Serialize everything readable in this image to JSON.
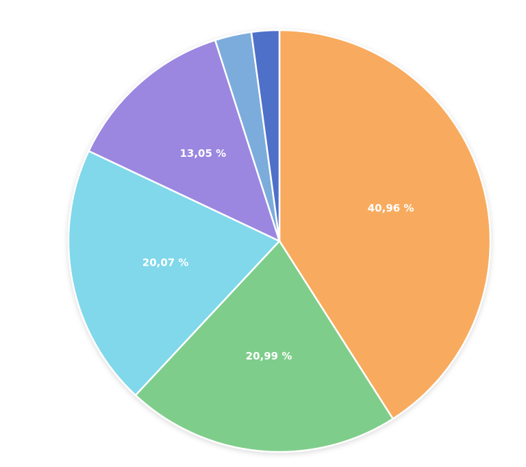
{
  "chart_data": {
    "type": "pie",
    "values": [
      40.96,
      20.99,
      20.07,
      13.05,
      2.8,
      2.13
    ],
    "value_labels": [
      "40,96 %",
      "20,99 %",
      "20,07 %",
      "13,05 %",
      null,
      null
    ],
    "colors": [
      "#f8ab5e",
      "#7fcd8b",
      "#80d8ea",
      "#9b87e0",
      "#7cacdc",
      "#5070c8"
    ]
  }
}
